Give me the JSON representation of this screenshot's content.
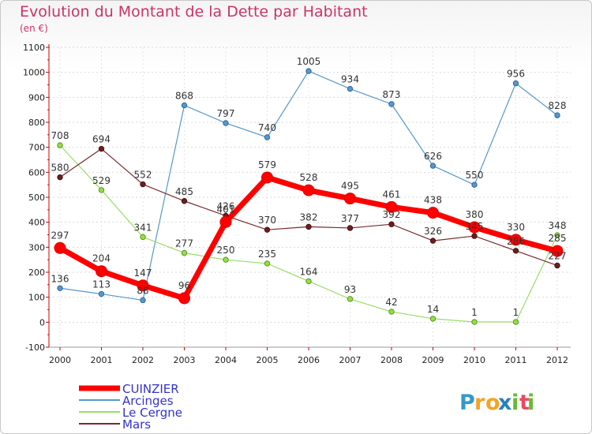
{
  "title": "Evolution du Montant de la Dette par Habitant",
  "subtitle": "(en €)",
  "logo": {
    "text": "Proxiti",
    "colors": [
      "#3399cc",
      "#f4a326",
      "#f4a326",
      "#2a7fc0",
      "#66bb33",
      "#e84a5f",
      "#66bb33"
    ]
  },
  "chart_data": {
    "type": "line",
    "title": "Evolution du Montant de la Dette par Habitant",
    "subtitle": "(en €)",
    "xlabel": "",
    "ylabel": "",
    "ylim": [
      -100,
      1100
    ],
    "yticks": [
      -100,
      0,
      100,
      200,
      300,
      400,
      500,
      600,
      700,
      800,
      900,
      1000,
      1100
    ],
    "categories": [
      "2000",
      "2001",
      "2002",
      "2003",
      "2004",
      "2005",
      "2006",
      "2007",
      "2008",
      "2009",
      "2010",
      "2011",
      "2012"
    ],
    "grid": true,
    "legend_position": "bottom-left",
    "series": [
      {
        "name": "Arcinges",
        "color": "#5599cc",
        "values": [
          136,
          113,
          88,
          868,
          797,
          740,
          1005,
          934,
          873,
          626,
          550,
          956,
          828
        ]
      },
      {
        "name": "Le Cergne",
        "color": "#99dd66",
        "values": [
          708,
          529,
          341,
          277,
          250,
          235,
          164,
          93,
          42,
          14,
          1,
          1,
          348
        ]
      },
      {
        "name": "Mars",
        "color": "#7a2a2a",
        "values": [
          580,
          694,
          552,
          485,
          426,
          370,
          382,
          377,
          392,
          326,
          345,
          286,
          227
        ]
      },
      {
        "name": "CUINZIER",
        "color": "#ff0000",
        "values": [
          297,
          204,
          147,
          96,
          401,
          579,
          528,
          495,
          461,
          438,
          380,
          330,
          285
        ]
      }
    ]
  }
}
